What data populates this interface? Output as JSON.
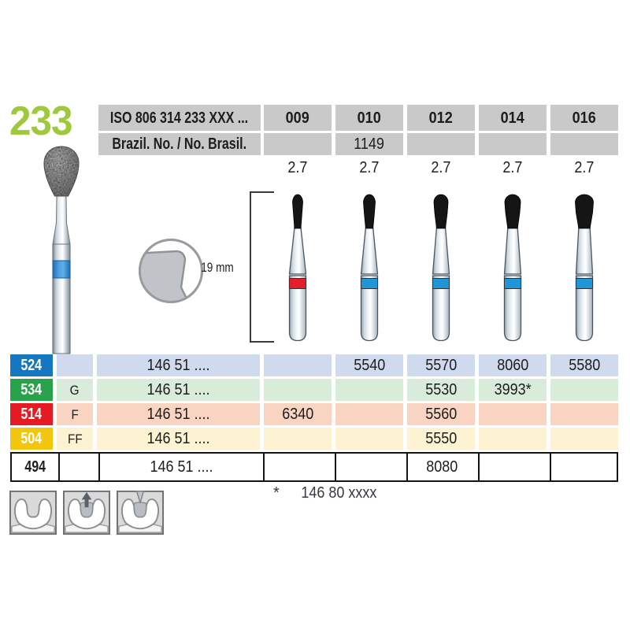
{
  "page": {
    "product_number": "233",
    "product_number_color": "#9dc93b",
    "length_label": "19 mm",
    "footnote_mark": "*",
    "footnote_text": "146 80 xxxx"
  },
  "header": {
    "iso_label": "ISO 806 314 233 XXX ...",
    "brazil_label": "Brazil. No. / No. Brasil.",
    "columns": [
      "009",
      "010",
      "012",
      "014",
      "016"
    ],
    "brazil_numbers": [
      "",
      "1149",
      "",
      "",
      ""
    ],
    "head_sizes": [
      "2.7",
      "2.7",
      "2.7",
      "2.7",
      "2.7"
    ]
  },
  "figures": {
    "photo_bur": {
      "name": "diamond-bur-photo",
      "band_color": "#2f80c8"
    },
    "head_shape_inset": {
      "name": "head-shape-profile"
    },
    "burs": [
      {
        "column": "009",
        "band_color": "#e41e2d",
        "head_width": 13
      },
      {
        "column": "010",
        "band_color": "#2196d4",
        "head_width": 15
      },
      {
        "column": "012",
        "band_color": "#2196d4",
        "head_width": 18
      },
      {
        "column": "014",
        "band_color": "#2196d4",
        "head_width": 20
      },
      {
        "column": "016",
        "band_color": "#2196d4",
        "head_width": 23
      }
    ]
  },
  "grit_rows": [
    {
      "code": "524",
      "badge_color": "#1577c0",
      "row_color": "#cfdaee",
      "grit_letter": "",
      "iso_prefix": "146 51 ....",
      "values": [
        "",
        "5540",
        "5570",
        "8060",
        "5580"
      ],
      "outlined": false
    },
    {
      "code": "534",
      "badge_color": "#2aa24c",
      "row_color": "#d8ecd9",
      "grit_letter": "G",
      "iso_prefix": "146 51 ....",
      "values": [
        "",
        "",
        "5530",
        "3993*",
        ""
      ],
      "outlined": false
    },
    {
      "code": "514",
      "badge_color": "#e41b23",
      "row_color": "#f9d4c3",
      "grit_letter": "F",
      "iso_prefix": "146 51 ....",
      "values": [
        "6340",
        "",
        "5560",
        "",
        ""
      ],
      "outlined": false
    },
    {
      "code": "504",
      "badge_color": "#f2c50e",
      "row_color": "#fdf3d3",
      "grit_letter": "FF",
      "iso_prefix": "146 51 ....",
      "values": [
        "",
        "",
        "5550",
        "",
        ""
      ],
      "outlined": false
    },
    {
      "code": "494",
      "badge_color": "#ffffff",
      "row_color": "#ffffff",
      "grit_letter": "",
      "iso_prefix": "146 51 ....",
      "values": [
        "",
        "",
        "8080",
        "",
        ""
      ],
      "outlined": true
    }
  ],
  "icons": [
    {
      "name": "tooth-cavity-icon"
    },
    {
      "name": "tooth-material-removal-icon"
    },
    {
      "name": "tooth-bur-preparation-icon"
    }
  ]
}
